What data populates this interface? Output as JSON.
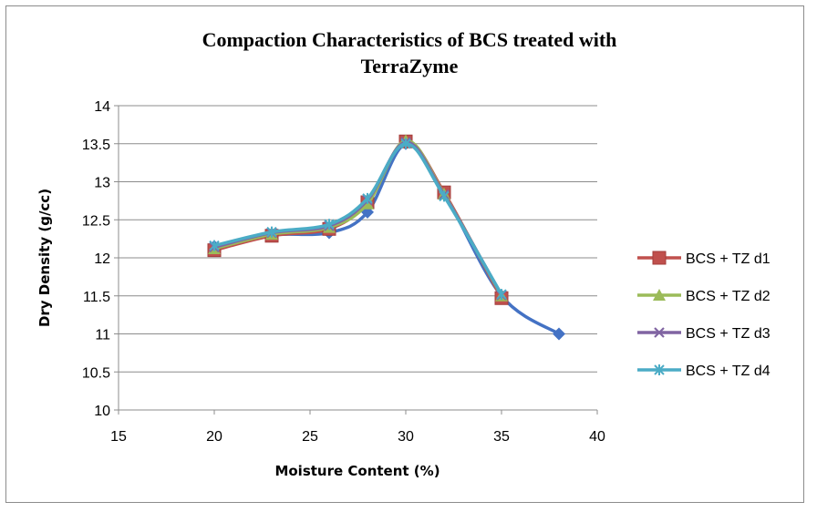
{
  "chart_data": {
    "type": "line",
    "title_lines": [
      "Compaction  Characteristics of BCS treated with",
      "TerraZyme"
    ],
    "xlabel": "Moisture Content (%)",
    "ylabel": "Dry Density (g/cc)",
    "xlim": [
      15,
      40
    ],
    "ylim": [
      10,
      14
    ],
    "x_ticks": [
      "15",
      "20",
      "25",
      "30",
      "35",
      "40"
    ],
    "y_ticks": [
      "10",
      "10.5",
      "11",
      "11.5",
      "12",
      "12.5",
      "13",
      "13.5",
      "14"
    ],
    "grid": "horizontal",
    "legend_position": "right",
    "series": [
      {
        "name": "",
        "marker": "diamond",
        "color": "#4472c4",
        "x": [
          20,
          23,
          26,
          28,
          30,
          32,
          35,
          38
        ],
        "y": [
          12.15,
          12.3,
          12.33,
          12.6,
          13.5,
          12.85,
          11.5,
          11.0
        ]
      },
      {
        "name": "BCS + TZ d1",
        "marker": "square",
        "color": "#c0504d",
        "x": [
          20,
          23,
          26,
          28,
          30,
          32,
          35
        ],
        "y": [
          12.1,
          12.29,
          12.38,
          12.73,
          13.53,
          12.86,
          11.47
        ]
      },
      {
        "name": "BCS + TZ d2",
        "marker": "triangle",
        "color": "#9bbb59",
        "x": [
          20,
          23,
          26,
          28,
          30,
          32,
          35
        ],
        "y": [
          12.12,
          12.31,
          12.4,
          12.71,
          13.54,
          12.84,
          11.5
        ]
      },
      {
        "name": "BCS + TZ d3",
        "marker": "x",
        "color": "#8064a2",
        "x": [
          20,
          23,
          26,
          28,
          30,
          32,
          35
        ],
        "y": [
          12.14,
          12.33,
          12.42,
          12.76,
          13.52,
          12.83,
          11.51
        ]
      },
      {
        "name": "BCS + TZ d4",
        "marker": "asterisk",
        "color": "#4bacc6",
        "x": [
          20,
          23,
          26,
          28,
          30,
          32,
          35
        ],
        "y": [
          12.16,
          12.34,
          12.44,
          12.78,
          13.5,
          12.81,
          11.52
        ]
      }
    ]
  }
}
